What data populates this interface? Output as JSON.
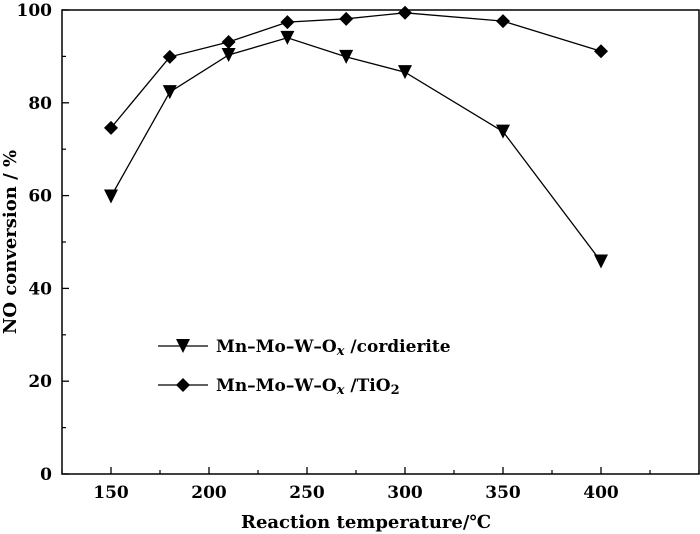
{
  "chart_data": {
    "type": "line",
    "xlabel": "Reaction temperature/℃",
    "ylabel": "NO conversion / %",
    "xlim": [
      125,
      450
    ],
    "ylim": [
      0,
      100
    ],
    "x_ticks": [
      150,
      200,
      250,
      300,
      350,
      400
    ],
    "y_ticks": [
      0,
      20,
      40,
      60,
      80,
      100
    ],
    "grid": false,
    "legend_position": "lower-left",
    "x": [
      150,
      180,
      210,
      240,
      270,
      300,
      350,
      400
    ],
    "series": [
      {
        "name": "Mn–Mo–W–O",
        "name_subscript": "x",
        "name_suffix": " /cordierite",
        "marker": "triangle-down",
        "values": [
          59.8,
          82.3,
          90.3,
          94.0,
          89.9,
          86.6,
          73.8,
          45.8
        ]
      },
      {
        "name": "Mn–Mo–W–O",
        "name_subscript": "x",
        "name_suffix": " /TiO",
        "name_suffix_subscript": "2",
        "marker": "diamond",
        "values": [
          74.6,
          89.9,
          93.1,
          97.4,
          98.1,
          99.4,
          97.6,
          91.1
        ]
      }
    ]
  }
}
